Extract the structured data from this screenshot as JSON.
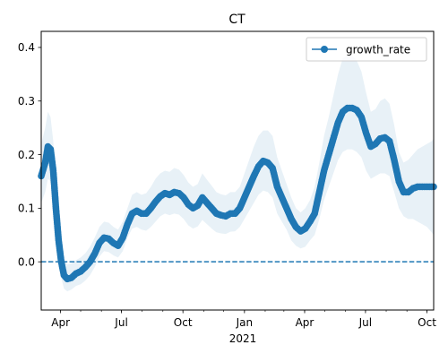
{
  "chart_data": {
    "type": "line",
    "title": "CT",
    "xlabel": "2021",
    "ylabel": "",
    "x_range": [
      "2020-03-03",
      "2021-10-11"
    ],
    "ylim": [
      -0.09,
      0.43
    ],
    "x_ticks": [
      {
        "date": "2020-04-01",
        "label": "Apr"
      },
      {
        "date": "2020-07-01",
        "label": "Jul"
      },
      {
        "date": "2020-10-01",
        "label": "Oct"
      },
      {
        "date": "2021-01-01",
        "label": "Jan"
      },
      {
        "date": "2021-04-01",
        "label": "Apr"
      },
      {
        "date": "2021-07-01",
        "label": "Jul"
      },
      {
        "date": "2021-10-01",
        "label": "Oct"
      }
    ],
    "y_ticks": [
      0.0,
      0.1,
      0.2,
      0.3,
      0.4
    ],
    "y_tick_labels": [
      "0.0",
      "0.1",
      "0.2",
      "0.3",
      "0.4"
    ],
    "reference_line": {
      "y": 0.0,
      "style": "dashed"
    },
    "legend": {
      "placement": "upper right"
    },
    "series": [
      {
        "name": "growth_rate",
        "color": "#1f77b4",
        "marker": "circle",
        "x": [
          "2020-03-03",
          "2020-03-09",
          "2020-03-13",
          "2020-03-17",
          "2020-03-21",
          "2020-03-25",
          "2020-03-29",
          "2020-04-02",
          "2020-04-06",
          "2020-04-11",
          "2020-04-17",
          "2020-04-24",
          "2020-05-01",
          "2020-05-08",
          "2020-05-15",
          "2020-05-22",
          "2020-05-29",
          "2020-06-05",
          "2020-06-12",
          "2020-06-19",
          "2020-06-26",
          "2020-07-03",
          "2020-07-10",
          "2020-07-17",
          "2020-07-24",
          "2020-07-31",
          "2020-08-07",
          "2020-08-14",
          "2020-08-21",
          "2020-08-28",
          "2020-09-04",
          "2020-09-11",
          "2020-09-18",
          "2020-09-25",
          "2020-10-02",
          "2020-10-09",
          "2020-10-16",
          "2020-10-23",
          "2020-10-30",
          "2020-11-06",
          "2020-11-13",
          "2020-11-20",
          "2020-11-27",
          "2020-12-04",
          "2020-12-11",
          "2020-12-18",
          "2020-12-25",
          "2021-01-01",
          "2021-01-08",
          "2021-01-15",
          "2021-01-22",
          "2021-01-29",
          "2021-02-05",
          "2021-02-12",
          "2021-02-19",
          "2021-02-26",
          "2021-03-05",
          "2021-03-12",
          "2021-03-19",
          "2021-03-26",
          "2021-04-02",
          "2021-04-09",
          "2021-04-16",
          "2021-04-23",
          "2021-04-30",
          "2021-05-07",
          "2021-05-14",
          "2021-05-21",
          "2021-05-28",
          "2021-06-04",
          "2021-06-11",
          "2021-06-18",
          "2021-06-25",
          "2021-07-02",
          "2021-07-09",
          "2021-07-16",
          "2021-07-23",
          "2021-07-30",
          "2021-08-06",
          "2021-08-13",
          "2021-08-20",
          "2021-08-27",
          "2021-09-03",
          "2021-09-10",
          "2021-09-17",
          "2021-09-24",
          "2021-10-01",
          "2021-10-08",
          "2021-10-11"
        ],
        "values": [
          0.16,
          0.185,
          0.215,
          0.21,
          0.17,
          0.1,
          0.04,
          0.0,
          -0.025,
          -0.032,
          -0.03,
          -0.022,
          -0.018,
          -0.01,
          0.0,
          0.015,
          0.035,
          0.045,
          0.043,
          0.035,
          0.03,
          0.045,
          0.07,
          0.09,
          0.095,
          0.09,
          0.09,
          0.1,
          0.112,
          0.122,
          0.128,
          0.125,
          0.13,
          0.128,
          0.12,
          0.107,
          0.1,
          0.105,
          0.12,
          0.11,
          0.1,
          0.09,
          0.087,
          0.085,
          0.09,
          0.09,
          0.1,
          0.12,
          0.14,
          0.16,
          0.178,
          0.188,
          0.185,
          0.175,
          0.14,
          0.12,
          0.1,
          0.08,
          0.065,
          0.057,
          0.062,
          0.075,
          0.09,
          0.13,
          0.17,
          0.2,
          0.23,
          0.26,
          0.28,
          0.287,
          0.287,
          0.283,
          0.27,
          0.24,
          0.215,
          0.22,
          0.23,
          0.232,
          0.225,
          0.19,
          0.15,
          0.13,
          0.13,
          0.137,
          0.14,
          0.14,
          0.14,
          0.14,
          0.14
        ],
        "ci_lower": [
          0.11,
          0.13,
          0.155,
          0.15,
          0.115,
          0.06,
          0.01,
          -0.03,
          -0.05,
          -0.055,
          -0.052,
          -0.045,
          -0.042,
          -0.035,
          -0.025,
          -0.01,
          0.01,
          0.02,
          0.018,
          0.012,
          0.008,
          0.02,
          0.045,
          0.062,
          0.065,
          0.06,
          0.058,
          0.065,
          0.075,
          0.085,
          0.09,
          0.087,
          0.09,
          0.088,
          0.08,
          0.068,
          0.062,
          0.066,
          0.078,
          0.07,
          0.062,
          0.055,
          0.053,
          0.052,
          0.056,
          0.057,
          0.065,
          0.08,
          0.095,
          0.11,
          0.125,
          0.133,
          0.13,
          0.12,
          0.09,
          0.075,
          0.06,
          0.04,
          0.03,
          0.025,
          0.028,
          0.04,
          0.05,
          0.08,
          0.115,
          0.14,
          0.165,
          0.19,
          0.205,
          0.21,
          0.21,
          0.205,
          0.195,
          0.17,
          0.155,
          0.16,
          0.165,
          0.165,
          0.16,
          0.13,
          0.1,
          0.085,
          0.08,
          0.08,
          0.075,
          0.07,
          0.065,
          0.055,
          0.05
        ],
        "ci_upper": [
          0.22,
          0.25,
          0.28,
          0.27,
          0.225,
          0.145,
          0.075,
          0.035,
          0.005,
          -0.005,
          -0.003,
          0.003,
          0.008,
          0.016,
          0.028,
          0.045,
          0.065,
          0.075,
          0.073,
          0.065,
          0.06,
          0.075,
          0.1,
          0.125,
          0.13,
          0.125,
          0.128,
          0.14,
          0.155,
          0.165,
          0.17,
          0.168,
          0.175,
          0.172,
          0.162,
          0.148,
          0.14,
          0.145,
          0.165,
          0.153,
          0.142,
          0.13,
          0.126,
          0.124,
          0.13,
          0.13,
          0.14,
          0.165,
          0.19,
          0.215,
          0.235,
          0.245,
          0.245,
          0.235,
          0.195,
          0.17,
          0.145,
          0.12,
          0.1,
          0.092,
          0.1,
          0.115,
          0.14,
          0.185,
          0.235,
          0.27,
          0.31,
          0.35,
          0.38,
          0.385,
          0.385,
          0.375,
          0.355,
          0.315,
          0.28,
          0.285,
          0.3,
          0.305,
          0.295,
          0.255,
          0.205,
          0.185,
          0.19,
          0.2,
          0.21,
          0.215,
          0.22,
          0.225,
          0.23
        ]
      }
    ]
  }
}
